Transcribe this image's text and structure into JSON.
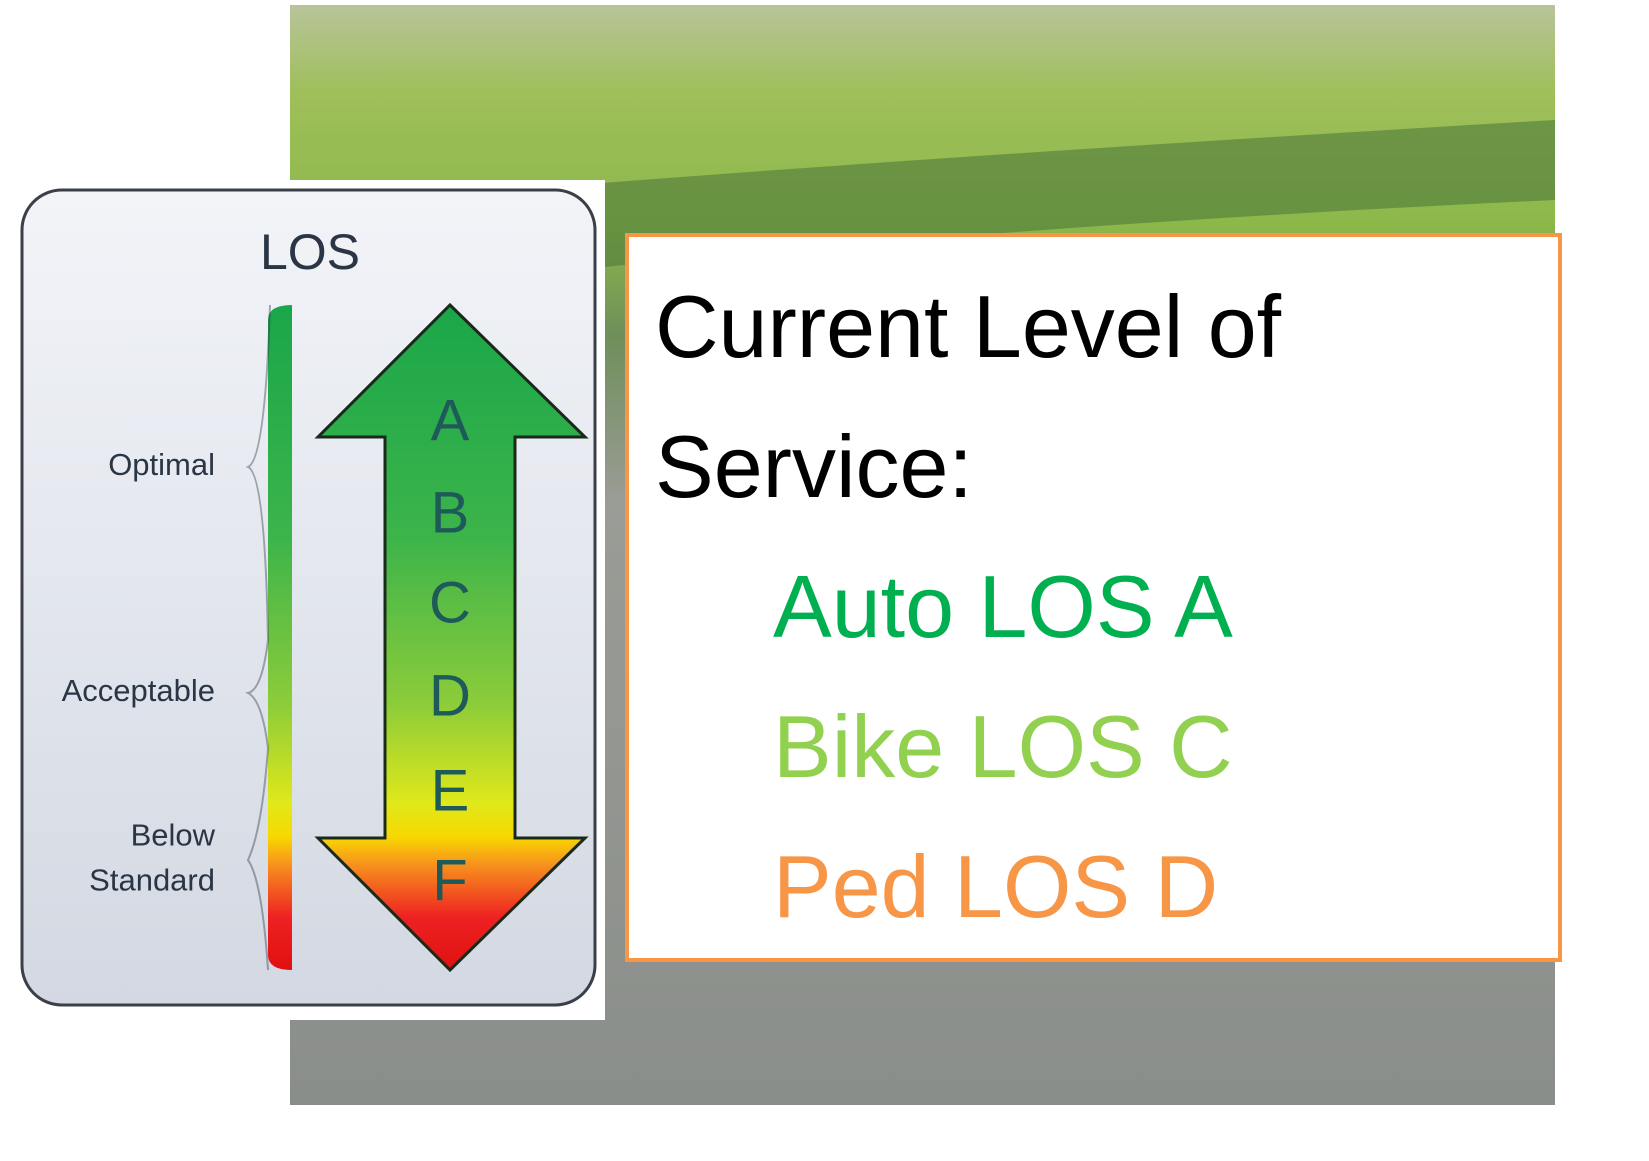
{
  "los_panel": {
    "title": "LOS",
    "grades": [
      "A",
      "B",
      "C",
      "D",
      "E",
      "F"
    ],
    "brackets": [
      {
        "lines": [
          "Optimal"
        ]
      },
      {
        "lines": [
          "Acceptable"
        ]
      },
      {
        "lines": [
          "Below",
          "Standard"
        ]
      }
    ]
  },
  "text_box": {
    "heading": "Current Level of Service:",
    "items": [
      "Auto LOS A",
      "Bike LOS C",
      "Ped LOS D"
    ]
  }
}
